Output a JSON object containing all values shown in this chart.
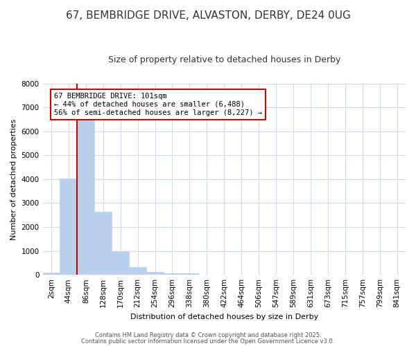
{
  "title1": "67, BEMBRIDGE DRIVE, ALVASTON, DERBY, DE24 0UG",
  "title2": "Size of property relative to detached houses in Derby",
  "xlabel": "Distribution of detached houses by size in Derby",
  "ylabel": "Number of detached properties",
  "categories": [
    "2sqm",
    "44sqm",
    "86sqm",
    "128sqm",
    "170sqm",
    "212sqm",
    "254sqm",
    "296sqm",
    "338sqm",
    "380sqm",
    "422sqm",
    "464sqm",
    "506sqm",
    "547sqm",
    "589sqm",
    "631sqm",
    "673sqm",
    "715sqm",
    "757sqm",
    "799sqm",
    "841sqm"
  ],
  "values": [
    80,
    4020,
    6620,
    2650,
    980,
    330,
    120,
    75,
    75,
    0,
    0,
    0,
    0,
    0,
    0,
    0,
    0,
    0,
    0,
    0,
    0
  ],
  "bar_color": "#b8d0eb",
  "bar_edge_color": "#b8d0eb",
  "red_line_x": 1.5,
  "annotation_text": "67 BEMBRIDGE DRIVE: 101sqm\n← 44% of detached houses are smaller (6,488)\n56% of semi-detached houses are larger (8,227) →",
  "annotation_box_color": "#ffffff",
  "annotation_border_color": "#cc0000",
  "ylim": [
    0,
    8000
  ],
  "yticks": [
    0,
    1000,
    2000,
    3000,
    4000,
    5000,
    6000,
    7000,
    8000
  ],
  "footer1": "Contains HM Land Registry data © Crown copyright and database right 2025.",
  "footer2": "Contains public sector information licensed under the Open Government Licence v3.0.",
  "bg_color": "#ffffff",
  "plot_bg_color": "#ffffff",
  "grid_color": "#d0daea",
  "red_line_color": "#cc0000",
  "title1_fontsize": 11,
  "title2_fontsize": 9,
  "xlabel_fontsize": 8,
  "ylabel_fontsize": 8,
  "tick_fontsize": 7.5,
  "annotation_fontsize": 7.5
}
